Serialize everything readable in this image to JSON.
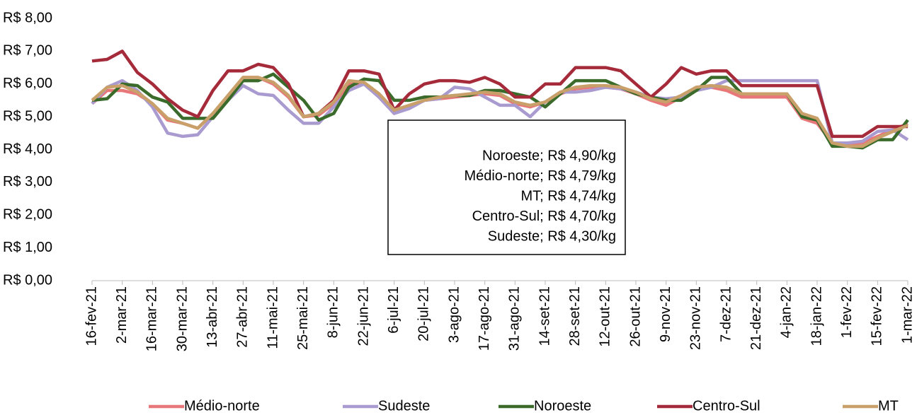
{
  "chart_data": {
    "type": "line",
    "categories": [
      "16-fev-21",
      null,
      "2-mar-21",
      null,
      "16-mar-21",
      null,
      "30-mar-21",
      null,
      "13-abr-21",
      null,
      "27-abr-21",
      null,
      "11-mai-21",
      null,
      "25-mai-21",
      null,
      "8-jun-21",
      null,
      "22-jun-21",
      null,
      "6-jul-21",
      null,
      "20-jul-21",
      null,
      "3-ago-21",
      null,
      "17-ago-21",
      null,
      "31-ago-21",
      null,
      "14-set-21",
      null,
      "28-set-21",
      null,
      "12-out-21",
      null,
      "26-out-21",
      null,
      "9-nov-21",
      null,
      "23-nov-21",
      null,
      "7-dez-21",
      null,
      "21-dez-21",
      null,
      "4-jan-22",
      null,
      "18-jan-22",
      null,
      "1-fev-22",
      null,
      "15-fev-22",
      null,
      "1-mar-22"
    ],
    "series": [
      {
        "name": "Médio-norte",
        "color": "#e8777a",
        "values": [
          5.4,
          5.8,
          5.8,
          5.7,
          5.4,
          4.9,
          4.8,
          4.65,
          5.1,
          5.6,
          6.2,
          6.2,
          6.0,
          5.6,
          5.0,
          5.05,
          5.4,
          6.0,
          6.0,
          5.6,
          5.1,
          5.3,
          5.5,
          5.55,
          5.6,
          5.65,
          5.7,
          5.65,
          5.4,
          5.3,
          5.45,
          5.7,
          5.85,
          5.9,
          5.9,
          5.85,
          5.7,
          5.5,
          5.35,
          5.6,
          5.85,
          5.9,
          5.8,
          5.6,
          5.6,
          5.6,
          5.6,
          4.95,
          4.8,
          4.2,
          4.15,
          4.2,
          4.4,
          4.6,
          4.79
        ]
      },
      {
        "name": "Sudeste",
        "color": "#a99bd0",
        "values": [
          5.4,
          5.9,
          6.1,
          5.8,
          5.3,
          4.5,
          4.4,
          4.45,
          5.0,
          5.5,
          5.95,
          5.7,
          5.65,
          5.2,
          4.8,
          4.8,
          5.3,
          5.8,
          6.0,
          5.6,
          5.1,
          5.25,
          5.5,
          5.55,
          5.9,
          5.85,
          5.6,
          5.35,
          5.35,
          5.0,
          5.45,
          5.75,
          5.75,
          5.8,
          5.9,
          5.85,
          5.75,
          5.6,
          5.55,
          5.6,
          5.8,
          5.9,
          6.1,
          6.1,
          6.1,
          6.1,
          6.1,
          6.1,
          6.1,
          4.2,
          4.2,
          4.25,
          4.55,
          4.6,
          4.3
        ]
      },
      {
        "name": "Noroeste",
        "color": "#3a6b2a",
        "values": [
          5.5,
          5.55,
          6.0,
          5.95,
          5.6,
          5.45,
          4.95,
          4.95,
          4.95,
          5.5,
          6.1,
          6.1,
          6.3,
          5.9,
          5.5,
          4.9,
          5.1,
          5.9,
          6.15,
          6.1,
          5.5,
          5.5,
          5.6,
          5.6,
          5.65,
          5.65,
          5.8,
          5.8,
          5.7,
          5.6,
          5.3,
          5.7,
          6.1,
          6.1,
          6.1,
          5.9,
          5.7,
          5.6,
          5.5,
          5.5,
          5.8,
          6.2,
          6.2,
          5.7,
          5.7,
          5.7,
          5.7,
          5.0,
          4.9,
          4.1,
          4.1,
          4.05,
          4.3,
          4.3,
          4.9
        ]
      },
      {
        "name": "Centro-Sul",
        "color": "#a52a3a",
        "values": [
          6.7,
          6.75,
          7.0,
          6.35,
          6.0,
          5.55,
          5.2,
          5.0,
          5.8,
          6.4,
          6.4,
          6.6,
          6.5,
          6.0,
          5.0,
          5.1,
          5.5,
          6.4,
          6.4,
          6.3,
          5.2,
          5.7,
          6.0,
          6.1,
          6.1,
          6.05,
          6.2,
          6.0,
          5.6,
          5.6,
          6.0,
          6.0,
          6.5,
          6.5,
          6.5,
          6.4,
          6.0,
          5.6,
          6.0,
          6.5,
          6.3,
          6.4,
          6.4,
          5.95,
          5.95,
          5.95,
          5.95,
          5.95,
          5.95,
          4.4,
          4.4,
          4.4,
          4.7,
          4.7,
          4.7
        ]
      },
      {
        "name": "MT",
        "color": "#c9a06a",
        "values": [
          5.5,
          5.9,
          5.95,
          5.75,
          5.4,
          4.95,
          4.8,
          4.65,
          5.1,
          5.65,
          6.2,
          6.2,
          6.05,
          5.65,
          5.0,
          5.1,
          5.45,
          6.1,
          6.05,
          5.7,
          5.2,
          5.35,
          5.5,
          5.6,
          5.65,
          5.7,
          5.75,
          5.7,
          5.45,
          5.35,
          5.45,
          5.75,
          5.9,
          5.95,
          5.95,
          5.9,
          5.75,
          5.55,
          5.45,
          5.65,
          5.9,
          5.95,
          5.9,
          5.7,
          5.7,
          5.7,
          5.7,
          5.1,
          4.95,
          4.2,
          4.1,
          4.1,
          4.35,
          4.55,
          4.74
        ]
      }
    ],
    "ylim": [
      0,
      8
    ],
    "yticks": [
      {
        "value": 0,
        "label": "R$ 0,00"
      },
      {
        "value": 1,
        "label": "R$ 1,00"
      },
      {
        "value": 2,
        "label": "R$ 2,00"
      },
      {
        "value": 3,
        "label": "R$ 3,00"
      },
      {
        "value": 4,
        "label": "R$ 4,00"
      },
      {
        "value": 5,
        "label": "R$ 5,00"
      },
      {
        "value": 6,
        "label": "R$ 6,00"
      },
      {
        "value": 7,
        "label": "R$ 7,00"
      },
      {
        "value": 8,
        "label": "R$ 8,00"
      }
    ],
    "grid": false,
    "legend": "bottom",
    "annotations": [
      "Noroeste; R$ 4,90/kg",
      "Médio-norte; R$ 4,79/kg",
      "MT; R$ 4,74/kg",
      "Centro-Sul; R$ 4,70/kg",
      "Sudeste; R$ 4,30/kg"
    ]
  }
}
